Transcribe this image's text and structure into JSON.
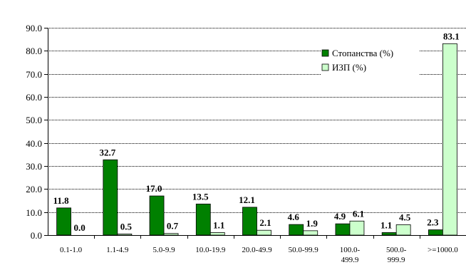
{
  "chart_data": {
    "type": "bar",
    "title": "",
    "xlabel": "",
    "ylabel": "",
    "ylim": [
      0,
      90
    ],
    "yticks": [
      "0.0",
      "10.0",
      "20.0",
      "30.0",
      "40.0",
      "50.0",
      "60.0",
      "70.0",
      "80.0",
      "90.0"
    ],
    "grid": true,
    "legend_position": "top-right",
    "categories": [
      [
        "0.1-1.0"
      ],
      [
        "1.1-4.9"
      ],
      [
        "5.0-9.9"
      ],
      [
        "10.0-19.9"
      ],
      [
        "20.0-49.9"
      ],
      [
        "50.0-99.9"
      ],
      [
        "100.0-",
        "499.9"
      ],
      [
        "500.0-",
        "999.9"
      ],
      [
        ">=1000.0"
      ]
    ],
    "series": [
      {
        "name": "Стопанства (%)",
        "color": "#008000",
        "values": [
          11.8,
          32.7,
          17.0,
          13.5,
          12.1,
          4.6,
          4.9,
          1.1,
          2.3
        ],
        "labels": [
          "11.8",
          "32.7",
          "17.0",
          "13.5",
          "12.1",
          "4.6",
          "4.9",
          "1.1",
          "2.3"
        ]
      },
      {
        "name": "ИЗП (%)",
        "color": "#ccffcc",
        "values": [
          0.0,
          0.5,
          0.7,
          1.1,
          2.1,
          1.9,
          6.1,
          4.5,
          83.1
        ],
        "labels": [
          "0.0",
          "0.5",
          "0.7",
          "1.1",
          "2.1",
          "1.9",
          "6.1",
          "4.5",
          "83.1"
        ]
      }
    ]
  }
}
